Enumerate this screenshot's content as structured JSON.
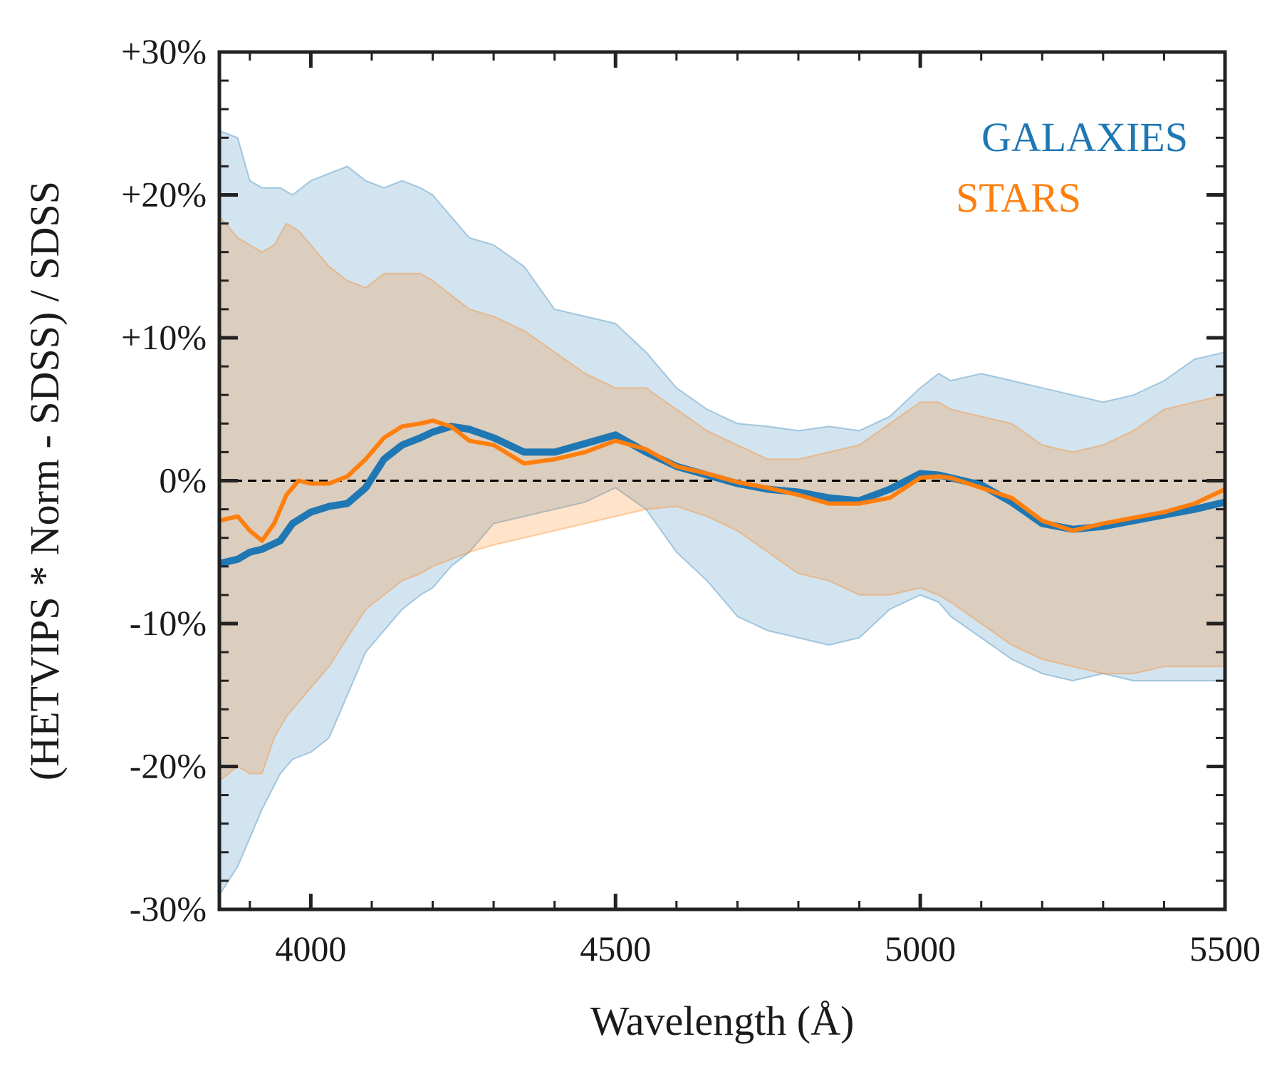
{
  "chart_data": {
    "type": "line",
    "title": "",
    "xlabel": "Wavelength (Å)",
    "ylabel": "(HETVIPS * Norm - SDSS) / SDSS",
    "xlim": [
      3850,
      5500
    ],
    "ylim": [
      -30,
      30
    ],
    "x_ticks": [
      4000,
      4500,
      5000,
      5500
    ],
    "x_tick_labels": [
      "4000",
      "4500",
      "5000",
      "5500"
    ],
    "y_ticks": [
      -30,
      -20,
      -10,
      0,
      10,
      20,
      30
    ],
    "y_tick_labels": [
      "-30%",
      "-20%",
      "-10%",
      "0%",
      "+10%",
      "+20%",
      "+30%"
    ],
    "reference_line": {
      "y": 0,
      "style": "dashed",
      "color": "#000000"
    },
    "legend_position": "top-right",
    "series": [
      {
        "name": "GALAXIES",
        "color": "#1f77b4",
        "x": [
          3850,
          3880,
          3900,
          3920,
          3950,
          3970,
          4000,
          4030,
          4060,
          4090,
          4120,
          4150,
          4180,
          4200,
          4230,
          4260,
          4300,
          4350,
          4400,
          4450,
          4500,
          4550,
          4600,
          4650,
          4700,
          4750,
          4800,
          4850,
          4900,
          4950,
          5000,
          5030,
          5050,
          5100,
          5150,
          5200,
          5250,
          5300,
          5350,
          5400,
          5450,
          5500
        ],
        "y": [
          -5.8,
          -5.5,
          -5.0,
          -4.8,
          -4.2,
          -3.0,
          -2.2,
          -1.8,
          -1.6,
          -0.5,
          1.5,
          2.5,
          3.0,
          3.4,
          3.8,
          3.6,
          3.0,
          2.0,
          2.0,
          2.6,
          3.2,
          2.0,
          1.0,
          0.4,
          -0.2,
          -0.6,
          -0.8,
          -1.2,
          -1.4,
          -0.6,
          0.5,
          0.4,
          0.2,
          -0.3,
          -1.5,
          -3.0,
          -3.4,
          -3.2,
          -2.8,
          -2.4,
          -2.0,
          -1.5
        ],
        "lower": [
          -29.0,
          -27.0,
          -25.0,
          -23.0,
          -20.5,
          -19.5,
          -19.0,
          -18.0,
          -15.0,
          -12.0,
          -10.5,
          -9.0,
          -8.0,
          -7.5,
          -6.0,
          -5.0,
          -3.0,
          -2.5,
          -2.0,
          -1.5,
          -0.5,
          -2.0,
          -5.0,
          -7.0,
          -9.5,
          -10.5,
          -11.0,
          -11.5,
          -11.0,
          -9.0,
          -8.0,
          -8.5,
          -9.5,
          -11.0,
          -12.5,
          -13.5,
          -14.0,
          -13.5,
          -14.0,
          -14.0,
          -14.0,
          -14.0
        ],
        "upper": [
          24.5,
          24.0,
          21.0,
          20.5,
          20.5,
          20.0,
          21.0,
          21.5,
          22.0,
          21.0,
          20.5,
          21.0,
          20.5,
          20.0,
          18.5,
          17.0,
          16.5,
          15.0,
          12.0,
          11.5,
          11.0,
          9.0,
          6.5,
          5.0,
          4.0,
          3.8,
          3.5,
          3.8,
          3.5,
          4.5,
          6.5,
          7.5,
          7.0,
          7.5,
          7.0,
          6.5,
          6.0,
          5.5,
          6.0,
          7.0,
          8.5,
          9.0
        ]
      },
      {
        "name": "STARS",
        "color": "#ff7f0e",
        "x": [
          3850,
          3880,
          3900,
          3920,
          3940,
          3960,
          3980,
          4000,
          4030,
          4060,
          4090,
          4120,
          4150,
          4180,
          4200,
          4230,
          4260,
          4300,
          4350,
          4400,
          4450,
          4500,
          4550,
          4600,
          4650,
          4700,
          4750,
          4800,
          4850,
          4900,
          4950,
          5000,
          5030,
          5050,
          5100,
          5150,
          5200,
          5250,
          5300,
          5350,
          5400,
          5450,
          5500
        ],
        "y": [
          -2.8,
          -2.5,
          -3.5,
          -4.2,
          -3.0,
          -1.0,
          0.0,
          -0.2,
          -0.2,
          0.3,
          1.5,
          3.0,
          3.8,
          4.0,
          4.2,
          3.8,
          2.8,
          2.5,
          1.2,
          1.5,
          2.0,
          2.8,
          2.2,
          1.0,
          0.5,
          -0.1,
          -0.5,
          -1.0,
          -1.6,
          -1.6,
          -1.2,
          0.2,
          0.3,
          0.2,
          -0.5,
          -1.2,
          -2.8,
          -3.5,
          -3.0,
          -2.6,
          -2.2,
          -1.6,
          -0.6
        ],
        "lower": [
          -21.0,
          -20.0,
          -20.5,
          -20.5,
          -18.0,
          -16.5,
          -15.5,
          -14.5,
          -13.0,
          -11.0,
          -9.0,
          -8.0,
          -7.0,
          -6.5,
          -6.0,
          -5.5,
          -5.0,
          -4.5,
          -4.0,
          -3.5,
          -3.0,
          -2.5,
          -2.0,
          -1.8,
          -2.5,
          -3.5,
          -5.0,
          -6.5,
          -7.0,
          -8.0,
          -8.0,
          -7.5,
          -8.0,
          -8.5,
          -10.0,
          -11.5,
          -12.5,
          -13.0,
          -13.5,
          -13.5,
          -13.0,
          -13.0,
          -13.0
        ],
        "upper": [
          18.5,
          17.0,
          16.5,
          16.0,
          16.5,
          18.0,
          17.5,
          16.5,
          15.0,
          14.0,
          13.5,
          14.5,
          14.5,
          14.5,
          14.0,
          13.0,
          12.0,
          11.5,
          10.5,
          9.0,
          7.5,
          6.5,
          6.5,
          5.0,
          3.5,
          2.5,
          1.5,
          1.5,
          2.0,
          2.5,
          4.0,
          5.5,
          5.5,
          5.0,
          4.5,
          4.0,
          2.5,
          2.0,
          2.5,
          3.5,
          5.0,
          5.5,
          6.0
        ]
      }
    ]
  }
}
